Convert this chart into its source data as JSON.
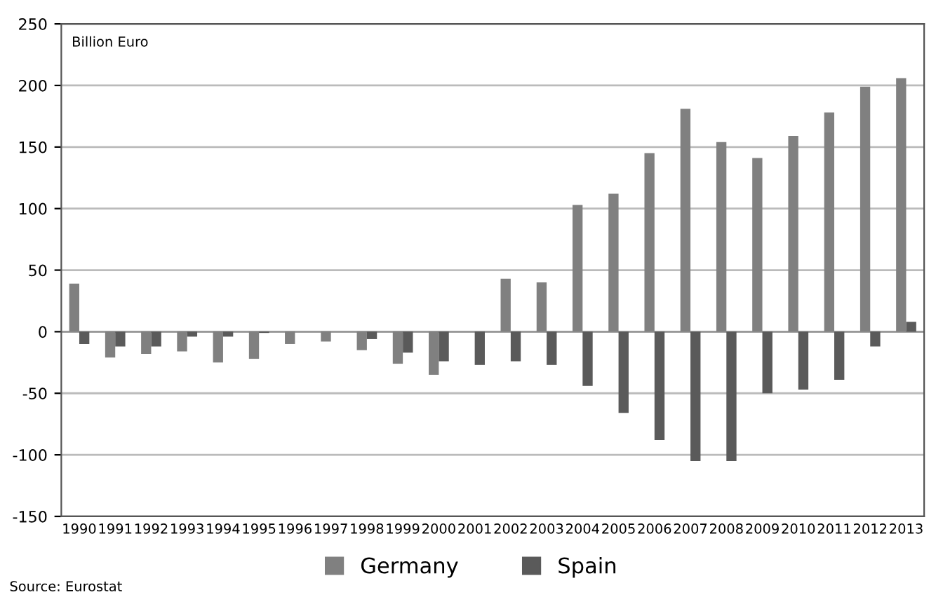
{
  "chart_data": {
    "type": "bar",
    "ylabel": "Billion Euro",
    "categories": [
      "1990",
      "1991",
      "1992",
      "1993",
      "1994",
      "1995",
      "1996",
      "1997",
      "1998",
      "1999",
      "2000",
      "2001",
      "2002",
      "2003",
      "2004",
      "2005",
      "2006",
      "2007",
      "2008",
      "2009",
      "2010",
      "2011",
      "2012",
      "2013"
    ],
    "series": [
      {
        "name": "Germany",
        "color": "#808080",
        "values": [
          39,
          -21,
          -18,
          -16,
          -25,
          -22,
          -10,
          -8,
          -15,
          -26,
          -35,
          0,
          43,
          40,
          103,
          112,
          145,
          181,
          154,
          141,
          159,
          178,
          199,
          206
        ]
      },
      {
        "name": "Spain",
        "color": "#5a5a5a",
        "values": [
          -10,
          -12,
          -12,
          -4,
          -4,
          -1,
          0,
          0,
          -6,
          -17,
          -24,
          -27,
          -24,
          -27,
          -44,
          -66,
          -88,
          -105,
          -105,
          -50,
          -47,
          -39,
          -12,
          8
        ]
      }
    ],
    "ylim": [
      -150,
      250
    ],
    "yticks": [
      -150,
      -100,
      -50,
      0,
      50,
      100,
      150,
      200,
      250
    ],
    "grid": "y",
    "legend": "bottom",
    "annotations": [
      "Source: Eurostat"
    ]
  }
}
